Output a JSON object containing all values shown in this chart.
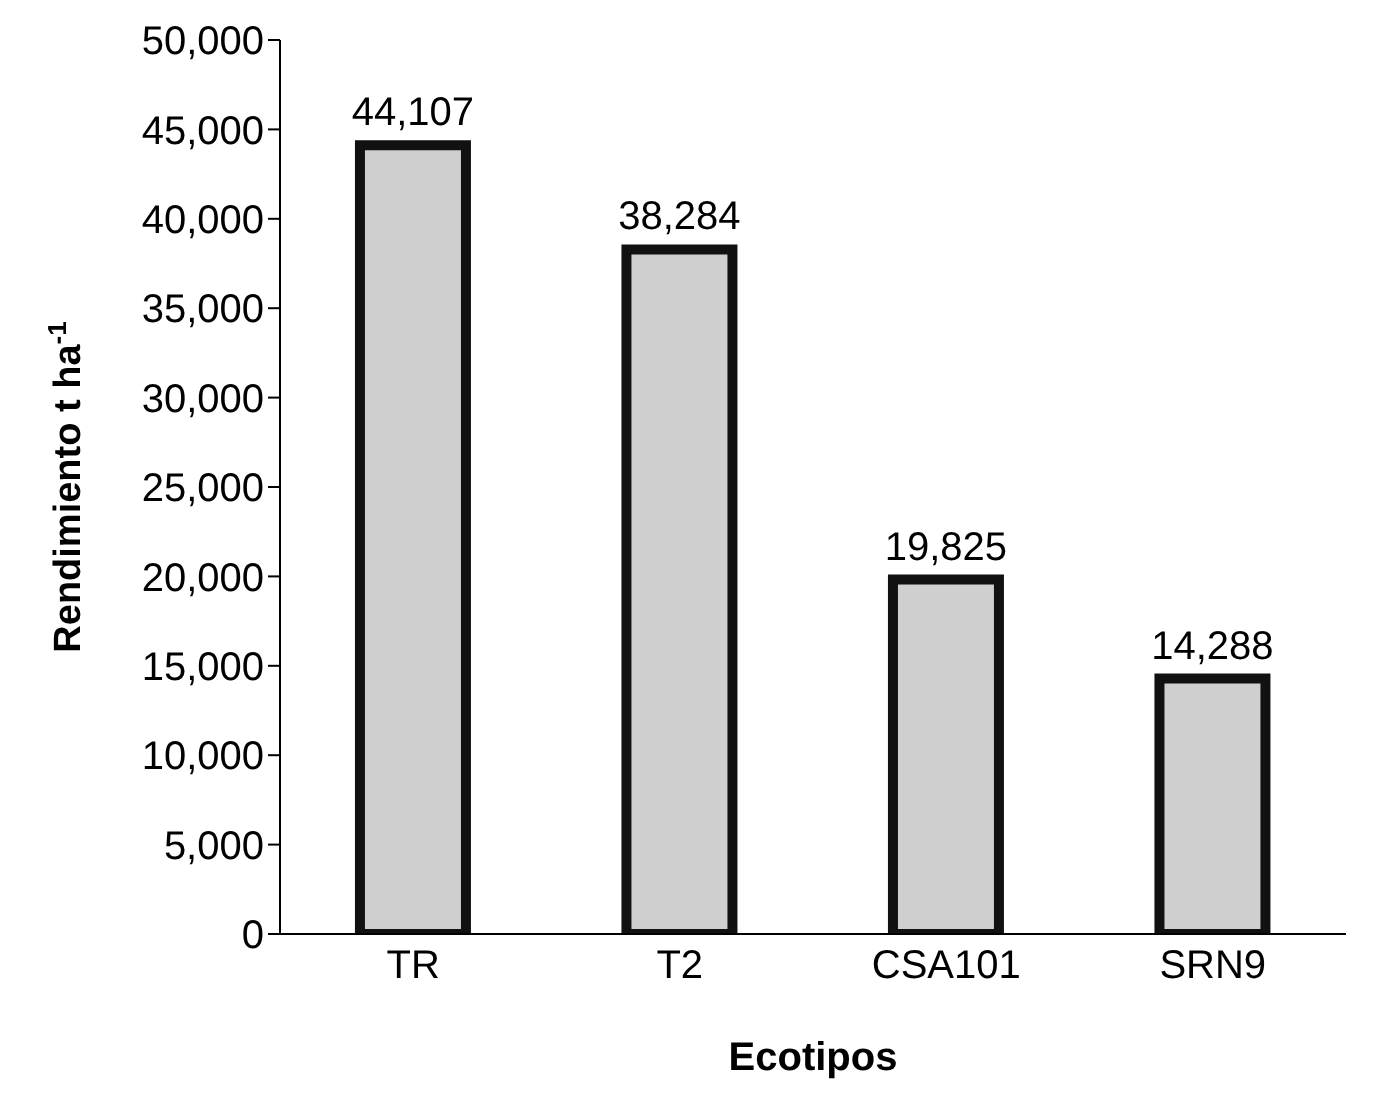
{
  "chart_data": {
    "type": "bar",
    "xlabel": "Ecotipos",
    "ylabel": "Rendimiento t ha$^{-1}$",
    "categories": [
      "TR",
      "T2",
      "CSA101",
      "SRN9"
    ],
    "values": [
      44107,
      38284,
      19825,
      14288
    ],
    "color": "#cfcfcf",
    "ylim": [
      0,
      50000
    ],
    "yticks": [
      0,
      {
        "value": 5000,
        "label": "5,000"
      },
      {
        "value": 10000,
        "label": "10,000"
      },
      {
        "value": 15000,
        "label": "15,000"
      },
      {
        "value": 20000,
        "label": "20,000"
      },
      {
        "value": 25000,
        "label": "25,000"
      },
      {
        "value": 30000,
        "label": "30,000"
      },
      {
        "value": 35000,
        "label": "35,000"
      },
      {
        "value": 40000,
        "label": "40,000"
      },
      {
        "value": 45000,
        "label": "45,000"
      },
      {
        "value": 50000,
        "label": "50,000"
      }
    ],
    "value_labels": [
      "44,107",
      "38,284",
      "19,825",
      "14,288"
    ],
    "grid": false,
    "legend": false
  }
}
